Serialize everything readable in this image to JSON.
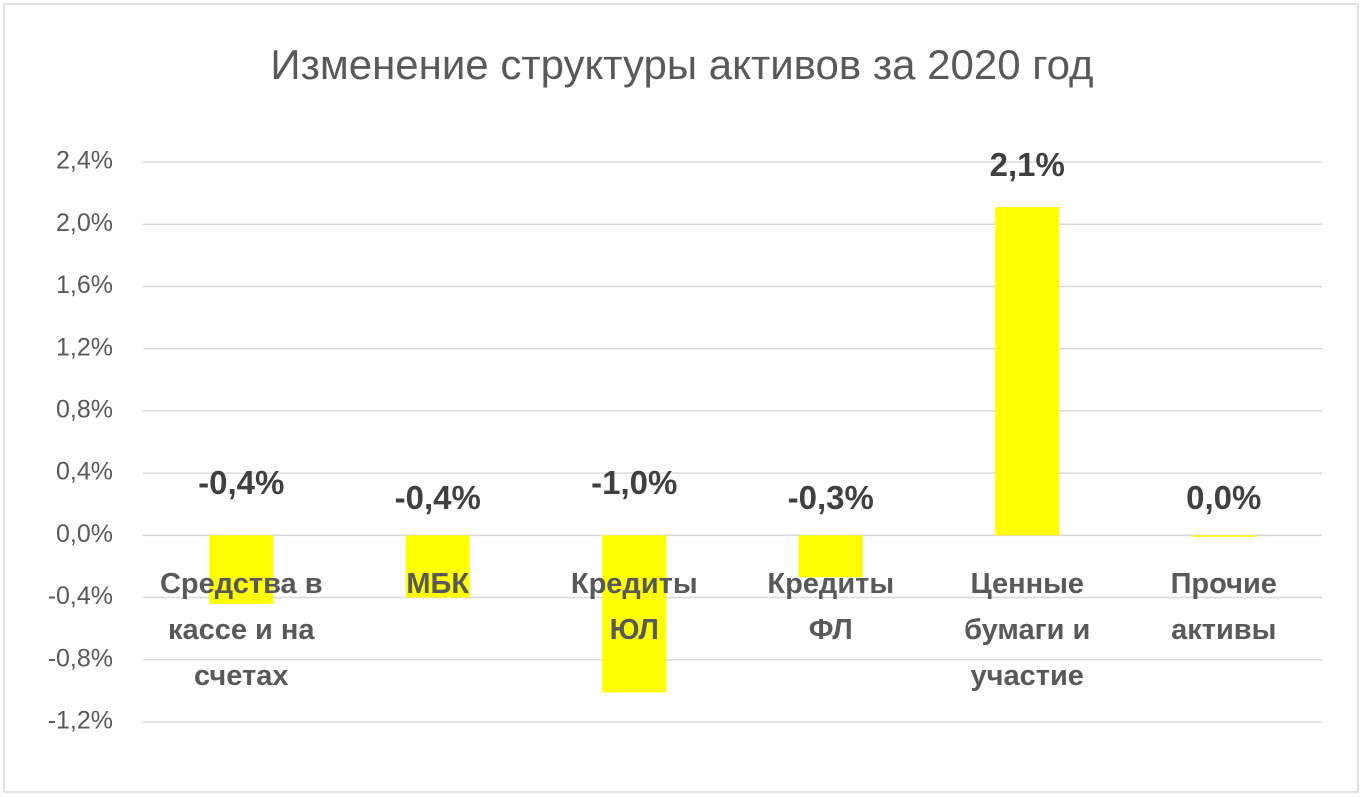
{
  "chart_data": {
    "type": "bar",
    "title": "Изменение структуры активов за 2020 год",
    "categories": [
      "Средства в кассе и на счетах",
      "МБК",
      "Кредиты ЮЛ",
      "Кредиты ФЛ",
      "Ценные бумаги и участие",
      "Прочие активы"
    ],
    "values": [
      -0.44,
      -0.4,
      -1.01,
      -0.27,
      2.11,
      0
    ],
    "value_labels": [
      "-0,4%",
      "-0,4%",
      "-1,0%",
      "-0,3%",
      "2,1%",
      "0,0%"
    ],
    "color": "#ffff00",
    "ylim": [
      -1.2,
      2.4
    ],
    "yticks": [
      {
        "value": -1.2,
        "label": "-1,2%"
      },
      {
        "value": -0.8,
        "label": "-0,8%"
      },
      {
        "value": -0.4,
        "label": "-0,4%"
      },
      {
        "value": 0,
        "label": "0,0%"
      },
      {
        "value": 0.4,
        "label": "0,4%"
      },
      {
        "value": 0.8,
        "label": "0,8%"
      },
      {
        "value": 1.2,
        "label": "1,2%"
      },
      {
        "value": 1.6,
        "label": "1,6%"
      },
      {
        "value": 2.0,
        "label": "2,0%"
      },
      {
        "value": 2.4,
        "label": "2,4%"
      }
    ],
    "grid": true
  }
}
